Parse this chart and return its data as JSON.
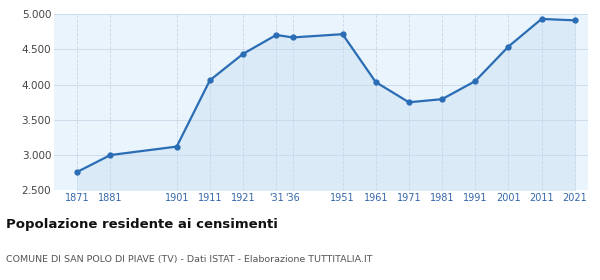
{
  "years": [
    1871,
    1881,
    1901,
    1911,
    1921,
    1931,
    1936,
    1951,
    1961,
    1971,
    1981,
    1991,
    2001,
    2011,
    2021
  ],
  "population": [
    2762,
    3001,
    3121,
    4061,
    4435,
    4703,
    4668,
    4714,
    4035,
    3749,
    3793,
    4049,
    4538,
    4930,
    4910
  ],
  "ylim": [
    2500,
    5000
  ],
  "yticks": [
    2500,
    3000,
    3500,
    4000,
    4500,
    5000
  ],
  "line_color": "#2a6db5",
  "fill_color": "#daeaf7",
  "marker_color": "#2a6db5",
  "grid_color": "#c8d8e8",
  "title": "Popolazione residente ai censimenti",
  "subtitle": "COMUNE DI SAN POLO DI PIAVE (TV) - Dati ISTAT - Elaborazione TUTTITALIA.IT",
  "background_color": "#eaf4fc",
  "x_tick_positions": [
    1871,
    1881,
    1901,
    1911,
    1921,
    1931,
    1936,
    1951,
    1961,
    1971,
    1981,
    1991,
    2001,
    2011,
    2021
  ],
  "x_tick_labels": [
    "1871",
    "1881",
    "1901",
    "1911",
    "1921",
    "'31",
    "'36",
    "1951",
    "1961",
    "1971",
    "1981",
    "1991",
    "2001",
    "2011",
    "2021"
  ],
  "xlim_left": 1864,
  "xlim_right": 2025
}
